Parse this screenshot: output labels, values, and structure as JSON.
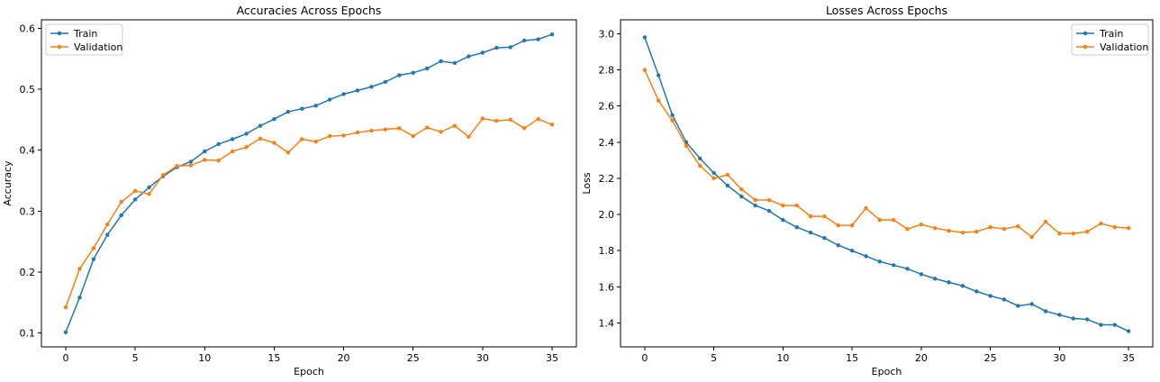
{
  "chart_data": [
    {
      "type": "line",
      "title": "Accuracies Across Epochs",
      "xlabel": "Epoch",
      "ylabel": "Accuracy",
      "xlim": [
        -1.75,
        36.75
      ],
      "ylim": [
        0.077,
        0.614
      ],
      "xticks": [
        0,
        5,
        10,
        15,
        20,
        25,
        30,
        35
      ],
      "yticks": [
        0.1,
        0.2,
        0.3,
        0.4,
        0.5,
        0.6
      ],
      "legend_position": "upper-left",
      "grid": false,
      "x": [
        0,
        1,
        2,
        3,
        4,
        5,
        6,
        7,
        8,
        9,
        10,
        11,
        12,
        13,
        14,
        15,
        16,
        17,
        18,
        19,
        20,
        21,
        22,
        23,
        24,
        25,
        26,
        27,
        28,
        29,
        30,
        31,
        32,
        33,
        34,
        35
      ],
      "series": [
        {
          "name": "Train",
          "color": "#1f77b4",
          "values": [
            0.101,
            0.158,
            0.221,
            0.261,
            0.293,
            0.319,
            0.339,
            0.357,
            0.372,
            0.381,
            0.398,
            0.41,
            0.418,
            0.427,
            0.44,
            0.451,
            0.463,
            0.468,
            0.473,
            0.483,
            0.492,
            0.498,
            0.504,
            0.512,
            0.523,
            0.527,
            0.534,
            0.546,
            0.543,
            0.554,
            0.56,
            0.568,
            0.569,
            0.58,
            0.582,
            0.59
          ]
        },
        {
          "name": "Validation",
          "color": "#ff7f0e",
          "values": [
            0.142,
            0.205,
            0.239,
            0.278,
            0.315,
            0.333,
            0.328,
            0.359,
            0.374,
            0.375,
            0.384,
            0.383,
            0.398,
            0.405,
            0.419,
            0.412,
            0.396,
            0.418,
            0.414,
            0.423,
            0.424,
            0.429,
            0.432,
            0.434,
            0.436,
            0.423,
            0.437,
            0.43,
            0.44,
            0.422,
            0.452,
            0.448,
            0.45,
            0.436,
            0.451,
            0.442
          ]
        }
      ]
    },
    {
      "type": "line",
      "title": "Losses Across Epochs",
      "xlabel": "Epoch",
      "ylabel": "Loss",
      "xlim": [
        -1.75,
        36.75
      ],
      "ylim": [
        1.268,
        3.077
      ],
      "xticks": [
        0,
        5,
        10,
        15,
        20,
        25,
        30,
        35
      ],
      "yticks": [
        1.4,
        1.6,
        1.8,
        2.0,
        2.2,
        2.4,
        2.6,
        2.8,
        3.0
      ],
      "legend_position": "upper-right",
      "grid": false,
      "x": [
        0,
        1,
        2,
        3,
        4,
        5,
        6,
        7,
        8,
        9,
        10,
        11,
        12,
        13,
        14,
        15,
        16,
        17,
        18,
        19,
        20,
        21,
        22,
        23,
        24,
        25,
        26,
        27,
        28,
        29,
        30,
        31,
        32,
        33,
        34,
        35
      ],
      "series": [
        {
          "name": "Train",
          "color": "#1f77b4",
          "values": [
            2.98,
            2.77,
            2.55,
            2.4,
            2.31,
            2.23,
            2.16,
            2.1,
            2.05,
            2.02,
            1.97,
            1.93,
            1.9,
            1.87,
            1.83,
            1.8,
            1.77,
            1.74,
            1.72,
            1.7,
            1.67,
            1.645,
            1.625,
            1.605,
            1.575,
            1.55,
            1.53,
            1.495,
            1.505,
            1.465,
            1.445,
            1.425,
            1.42,
            1.39,
            1.39,
            1.355
          ]
        },
        {
          "name": "Validation",
          "color": "#ff7f0e",
          "values": [
            2.8,
            2.63,
            2.52,
            2.38,
            2.27,
            2.2,
            2.22,
            2.14,
            2.08,
            2.08,
            2.05,
            2.05,
            1.99,
            1.99,
            1.94,
            1.94,
            2.035,
            1.97,
            1.97,
            1.92,
            1.945,
            1.925,
            1.91,
            1.9,
            1.905,
            1.93,
            1.92,
            1.935,
            1.875,
            1.96,
            1.895,
            1.895,
            1.905,
            1.95,
            1.93,
            1.925
          ]
        }
      ]
    }
  ]
}
